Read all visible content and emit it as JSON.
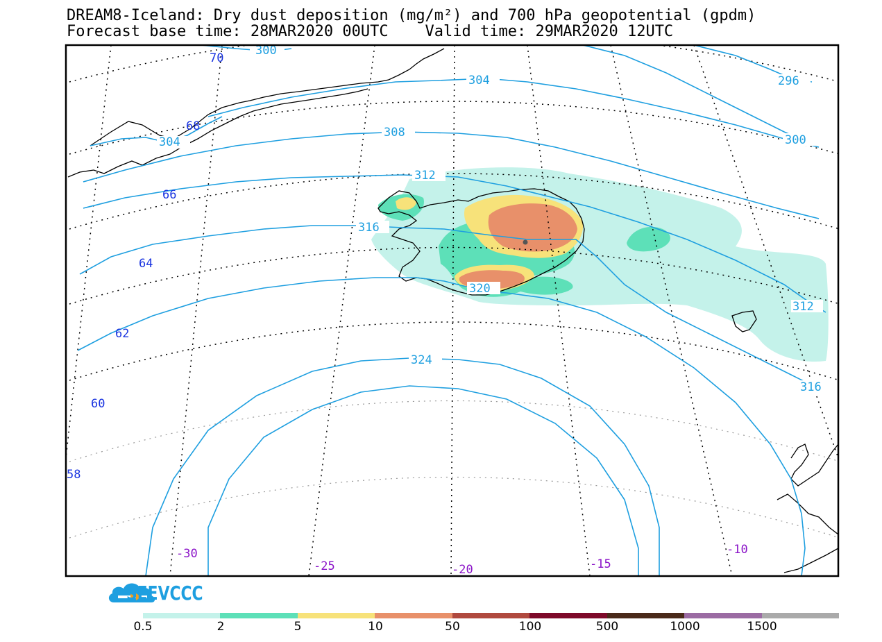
{
  "header": {
    "line1": "DREAM8-Iceland: Dry dust deposition (mg/m²) and 700 hPa geopotential (gpdm)",
    "line2": "Forecast base time: 28MAR2020 00UTC    Valid time: 29MAR2020 12UTC"
  },
  "map": {
    "contour_color": "#1e9fe0",
    "coastline_color": "#000000",
    "contour_labels": [
      "300",
      "304",
      "296",
      "304",
      "300",
      "308",
      "312",
      "316",
      "320",
      "312",
      "324",
      "316"
    ],
    "latitude_labels": [
      "70",
      "68",
      "66",
      "64",
      "62",
      "60",
      "58"
    ],
    "longitude_labels": [
      "-30",
      "-25",
      "-20",
      "-15",
      "-10"
    ],
    "latitude_label_color": "#1a34e0",
    "longitude_label_color": "#8b14c8"
  },
  "logo": {
    "text": "SEEVCCC",
    "icon": "cloud-arrow-icon",
    "color": "#1e9fe0"
  },
  "legend": {
    "labels": [
      "0.5",
      "2",
      "5",
      "10",
      "50",
      "100",
      "500",
      "1000",
      "1500"
    ],
    "colors": [
      "#c4f2ea",
      "#5de0b8",
      "#f7e27a",
      "#e8906a",
      "#b0493e",
      "#7e0a2a",
      "#4a2a1a",
      "#9b6ba3",
      "#aaaaaa"
    ]
  }
}
